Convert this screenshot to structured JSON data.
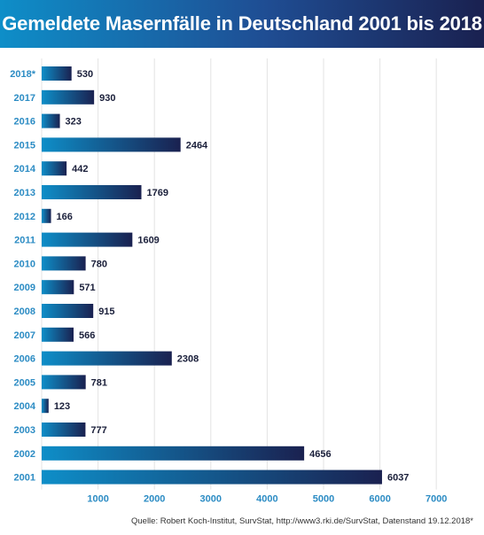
{
  "header": {
    "title": "Gemeldete Masernfälle in Deutschland 2001 bis 2018"
  },
  "chart_data": {
    "type": "bar",
    "orientation": "horizontal",
    "title": "Gemeldete Masernfälle in Deutschland 2001 bis 2018",
    "categories": [
      "2018*",
      "2017",
      "2016",
      "2015",
      "2014",
      "2013",
      "2012",
      "2011",
      "2010",
      "2009",
      "2008",
      "2007",
      "2006",
      "2005",
      "2004",
      "2003",
      "2002",
      "2001"
    ],
    "values": [
      530,
      930,
      323,
      2464,
      442,
      1769,
      166,
      1609,
      780,
      571,
      915,
      566,
      2308,
      781,
      123,
      777,
      4656,
      6037
    ],
    "xlim": [
      0,
      7500
    ],
    "xticks": [
      1000,
      2000,
      3000,
      4000,
      5000,
      6000,
      7000
    ],
    "xlabel": "",
    "ylabel": "",
    "grid": true,
    "colors": {
      "bar_start": "#0e8ec8",
      "bar_end": "#1a2150",
      "label": "#2c8cc4",
      "value": "#1a1f3a",
      "grid": "#e3e3e3"
    }
  },
  "footer": {
    "source": "Quelle: Robert Koch-Institut, SurvStat, http://www3.rki.de/SurvStat, Datenstand 19.12.2018*"
  }
}
